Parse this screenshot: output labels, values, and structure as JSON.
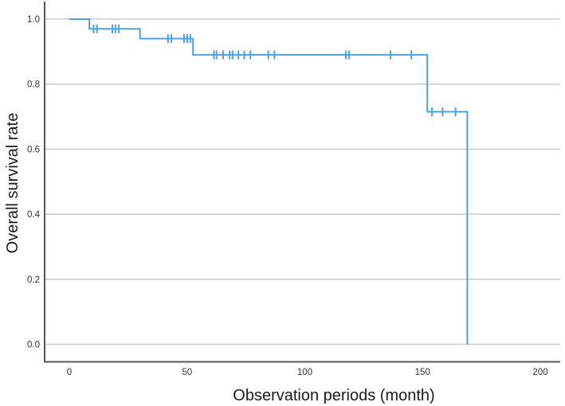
{
  "figure": {
    "background": "#ffffff",
    "line_color": "#4ba3e3",
    "grid_color": "#cccccc",
    "axis_color": "#555555",
    "tick_label_color": "#333333",
    "title_color": "#1a1a1a"
  },
  "chart_data": {
    "type": "line",
    "subtype": "kaplan-meier-step",
    "title": "",
    "xlabel": "Observation periods (month)",
    "ylabel": "Overall survival rate",
    "xlim": [
      0,
      210
    ],
    "ylim": [
      0.0,
      1.0
    ],
    "x_ticks": [
      "0",
      "50",
      "100",
      "150",
      "200"
    ],
    "y_ticks": [
      "0.0",
      "0.2",
      "0.4",
      "0.6",
      "0.8",
      "1.0"
    ],
    "grid": "horizontal-only",
    "legend": "none",
    "series": [
      {
        "name": "Overall survival",
        "steps": [
          {
            "time": 0,
            "survival": 1.0
          },
          {
            "time": 8.5,
            "survival": 0.97
          },
          {
            "time": 30,
            "survival": 0.94
          },
          {
            "time": 52.5,
            "survival": 0.89
          },
          {
            "time": 152,
            "survival": 0.715
          },
          {
            "time": 169,
            "survival": 0.0
          }
        ],
        "censor_marks": [
          {
            "time": 10.3,
            "survival": 0.97
          },
          {
            "time": 11.7,
            "survival": 0.97
          },
          {
            "time": 18.3,
            "survival": 0.97
          },
          {
            "time": 19.6,
            "survival": 0.97
          },
          {
            "time": 21.0,
            "survival": 0.97
          },
          {
            "time": 41.9,
            "survival": 0.94
          },
          {
            "time": 43.3,
            "survival": 0.94
          },
          {
            "time": 48.7,
            "survival": 0.94
          },
          {
            "time": 50.1,
            "survival": 0.94
          },
          {
            "time": 51.4,
            "survival": 0.94
          },
          {
            "time": 61.4,
            "survival": 0.89
          },
          {
            "time": 62.5,
            "survival": 0.89
          },
          {
            "time": 65.3,
            "survival": 0.89
          },
          {
            "time": 68.1,
            "survival": 0.89
          },
          {
            "time": 69.3,
            "survival": 0.89
          },
          {
            "time": 71.8,
            "survival": 0.89
          },
          {
            "time": 74.3,
            "survival": 0.89
          },
          {
            "time": 76.9,
            "survival": 0.89
          },
          {
            "time": 84.5,
            "survival": 0.89
          },
          {
            "time": 87.1,
            "survival": 0.89
          },
          {
            "time": 117.4,
            "survival": 0.89
          },
          {
            "time": 118.8,
            "survival": 0.89
          },
          {
            "time": 136.4,
            "survival": 0.89
          },
          {
            "time": 145.2,
            "survival": 0.89
          },
          {
            "time": 154.0,
            "survival": 0.715
          },
          {
            "time": 158.5,
            "survival": 0.715
          },
          {
            "time": 164.0,
            "survival": 0.715
          }
        ]
      }
    ]
  }
}
